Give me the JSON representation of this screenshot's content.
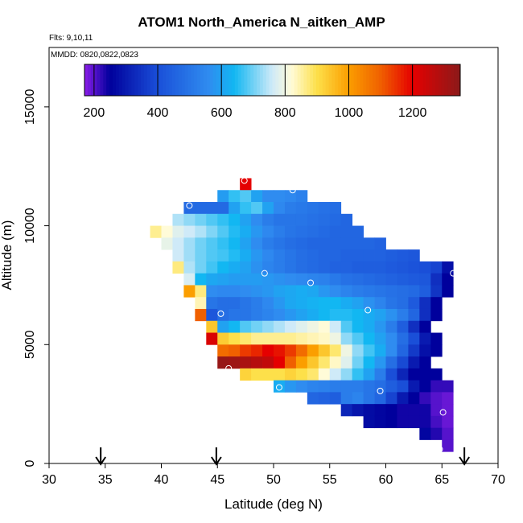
{
  "title": "ATOM1 North_America N_aitken_AMP",
  "flights_label": "Flts: 9,10,11",
  "dates_label": "MMDD: 0820,0822,0823",
  "chart_data": {
    "type": "heatmap",
    "title": "ATOM1 North_America N_aitken_AMP",
    "xlabel": "Latitude (deg N)",
    "ylabel": "Altitude (m)",
    "xlim": [
      30,
      70
    ],
    "ylim": [
      0,
      17500
    ],
    "x_ticks": [
      "30",
      "35",
      "40",
      "45",
      "50",
      "55",
      "60",
      "65",
      "70"
    ],
    "y_ticks": [
      "0",
      "5000",
      "10000",
      "15000"
    ],
    "colorbar": {
      "range": [
        170,
        1350
      ],
      "ticks": [
        "200",
        "400",
        "600",
        "800",
        "1000",
        "1200"
      ],
      "stops": [
        {
          "v": 170,
          "c": "#8a1ee8"
        },
        {
          "v": 250,
          "c": "#00009c"
        },
        {
          "v": 400,
          "c": "#1a4fd8"
        },
        {
          "v": 560,
          "c": "#2f8cf0"
        },
        {
          "v": 640,
          "c": "#12b7f2"
        },
        {
          "v": 760,
          "c": "#cfeaf8"
        },
        {
          "v": 820,
          "c": "#fffbd8"
        },
        {
          "v": 900,
          "c": "#fde04a"
        },
        {
          "v": 1000,
          "c": "#fb9e00"
        },
        {
          "v": 1100,
          "c": "#f06000"
        },
        {
          "v": 1200,
          "c": "#e50000"
        },
        {
          "v": 1350,
          "c": "#8b1a1a"
        }
      ]
    },
    "cell_lat_width": 1.0,
    "cell_alt_height": 500,
    "rows": [
      {
        "alt": 11500,
        "lat_start": 47,
        "values": [
          1200
        ]
      },
      {
        "alt": 11000,
        "lat_start": 45,
        "values": [
          590,
          660,
          680,
          600,
          560,
          560,
          550,
          530
        ]
      },
      {
        "alt": 10500,
        "lat_start": 42,
        "values": [
          470,
          470,
          470,
          470,
          600,
          660,
          680,
          600,
          550,
          520,
          510,
          500,
          490,
          480
        ]
      },
      {
        "alt": 10000,
        "lat_start": 41,
        "values": [
          740,
          720,
          700,
          680,
          660,
          640,
          600,
          560,
          520,
          500,
          500,
          500,
          490,
          480,
          470,
          460
        ]
      },
      {
        "alt": 9500,
        "lat_start": 39,
        "values": [
          860,
          820,
          780,
          760,
          740,
          710,
          680,
          650,
          620,
          580,
          550,
          520,
          500,
          490,
          480,
          470,
          460,
          460,
          460
        ]
      },
      {
        "alt": 9000,
        "lat_start": 40,
        "values": [
          790,
          760,
          730,
          700,
          680,
          660,
          640,
          600,
          560,
          520,
          500,
          480,
          470,
          460,
          460,
          460,
          460,
          460,
          460,
          450
        ]
      },
      {
        "alt": 8500,
        "lat_start": 41,
        "values": [
          760,
          730,
          700,
          680,
          670,
          650,
          620,
          580,
          550,
          520,
          500,
          480,
          470,
          460,
          460,
          450,
          450,
          450,
          450,
          440,
          430,
          420
        ]
      },
      {
        "alt": 8000,
        "lat_start": 41,
        "values": [
          870,
          740,
          700,
          670,
          640,
          620,
          600,
          570,
          540,
          520,
          500,
          480,
          470,
          460,
          450,
          450,
          440,
          440,
          440,
          430,
          420,
          410,
          400,
          380,
          280
        ]
      },
      {
        "alt": 7500,
        "lat_start": 42,
        "values": [
          770,
          640,
          610,
          600,
          590,
          590,
          590,
          580,
          570,
          560,
          550,
          540,
          530,
          510,
          490,
          480,
          470,
          460,
          450,
          440,
          430,
          420,
          340,
          250
        ]
      },
      {
        "alt": 7000,
        "lat_start": 42,
        "values": [
          1000,
          870,
          560,
          550,
          550,
          560,
          570,
          580,
          600,
          610,
          620,
          610,
          580,
          560,
          540,
          520,
          510,
          500,
          490,
          480,
          470,
          440,
          350,
          250
        ]
      },
      {
        "alt": 6500,
        "lat_start": 43,
        "values": [
          840,
          500,
          480,
          480,
          500,
          520,
          550,
          580,
          610,
          620,
          630,
          640,
          640,
          620,
          600,
          570,
          540,
          500,
          480,
          430,
          340,
          250
        ]
      },
      {
        "alt": 6000,
        "lat_start": 43,
        "values": [
          1100,
          420,
          480,
          500,
          500,
          520,
          540,
          560,
          580,
          600,
          620,
          640,
          650,
          650,
          640,
          620,
          600,
          570,
          520,
          460,
          340,
          250
        ]
      },
      {
        "alt": 5500,
        "lat_start": 44,
        "values": [
          940,
          600,
          640,
          680,
          700,
          720,
          740,
          760,
          780,
          800,
          820,
          760,
          680,
          640,
          620,
          580,
          520,
          440,
          340,
          250
        ]
      },
      {
        "alt": 5000,
        "lat_start": 44,
        "values": [
          1220,
          930,
          900,
          880,
          860,
          860,
          860,
          860,
          850,
          840,
          830,
          800,
          720,
          680,
          640,
          600,
          560,
          480,
          400,
          300,
          250
        ]
      },
      {
        "alt": 4500,
        "lat_start": 45,
        "values": [
          1080,
          1100,
          1140,
          1160,
          1200,
          1180,
          1140,
          1080,
          1000,
          940,
          880,
          800,
          720,
          670,
          620,
          560,
          460,
          360,
          280,
          250
        ]
      },
      {
        "alt": 4000,
        "lat_start": 45,
        "values": [
          1330,
          1320,
          1300,
          1280,
          1260,
          1200,
          1100,
          1000,
          940,
          880,
          830,
          780,
          700,
          640,
          580,
          480,
          390,
          300,
          250
        ]
      },
      {
        "alt": 3500,
        "lat_start": 47,
        "values": [
          920,
          900,
          900,
          900,
          920,
          900,
          880,
          820,
          760,
          720,
          660,
          600,
          520,
          400,
          320,
          250,
          250,
          250
        ]
      },
      {
        "alt": 3000,
        "lat_start": 50,
        "values": [
          620,
          580,
          560,
          540,
          530,
          520,
          520,
          520,
          500,
          480,
          440,
          400,
          300,
          250,
          220,
          220
        ]
      },
      {
        "alt": 2500,
        "lat_start": 53,
        "values": [
          460,
          450,
          440,
          520,
          540,
          500,
          460,
          380,
          300,
          250,
          220,
          200,
          190
        ]
      },
      {
        "alt": 2000,
        "lat_start": 56,
        "values": [
          320,
          290,
          270,
          260,
          250,
          240,
          240,
          240,
          200,
          190
        ]
      },
      {
        "alt": 1500,
        "lat_start": 58,
        "values": [
          270,
          260,
          250,
          240,
          240,
          240,
          210,
          190
        ]
      },
      {
        "alt": 1000,
        "lat_start": 63,
        "values": [
          260,
          230,
          200
        ]
      },
      {
        "alt": 500,
        "lat_start": 65,
        "values": [
          200
        ]
      }
    ],
    "flight_points": [
      {
        "lat": 47.4,
        "alt": 11900
      },
      {
        "lat": 51.7,
        "alt": 11500
      },
      {
        "lat": 42.5,
        "alt": 10850
      },
      {
        "lat": 49.2,
        "alt": 8000
      },
      {
        "lat": 53.3,
        "alt": 7600
      },
      {
        "lat": 66.0,
        "alt": 8000
      },
      {
        "lat": 45.3,
        "alt": 6300
      },
      {
        "lat": 58.4,
        "alt": 6450
      },
      {
        "lat": 46.0,
        "alt": 4000
      },
      {
        "lat": 50.5,
        "alt": 3200
      },
      {
        "lat": 59.5,
        "alt": 3050
      },
      {
        "lat": 65.1,
        "alt": 2150
      },
      {
        "lat": 64.8,
        "alt": 600
      }
    ],
    "arrows_lat": [
      34.6,
      44.9,
      67.0
    ]
  }
}
